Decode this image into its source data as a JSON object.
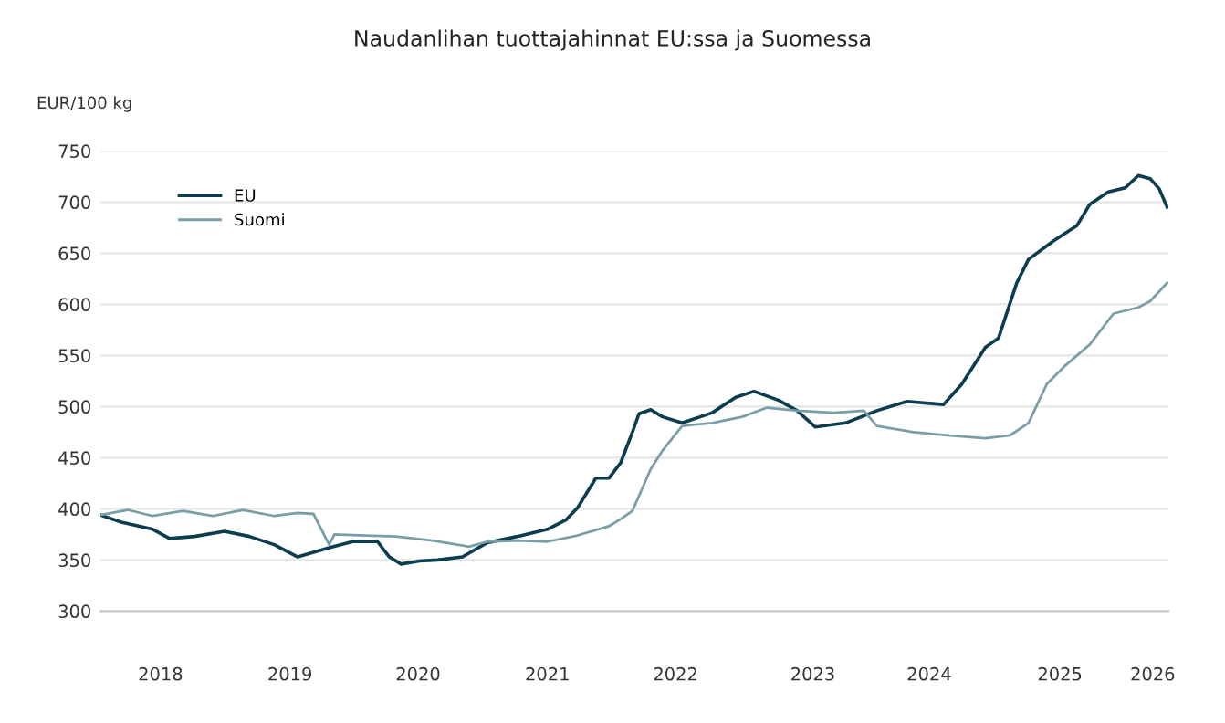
{
  "chart_data": {
    "type": "line",
    "title": "Naudanlihan tuottajahinnat EU:ssa ja Suomessa",
    "ylabel": "EUR/100 kg",
    "ylim": [
      300,
      750
    ],
    "yticks": [
      300,
      350,
      400,
      450,
      500,
      550,
      600,
      650,
      700,
      750
    ],
    "xlim": [
      2018.0,
      2026.17
    ],
    "xticks": [
      {
        "value": 2018.46,
        "label": "2018"
      },
      {
        "value": 2019.45,
        "label": "2019"
      },
      {
        "value": 2020.43,
        "label": "2020"
      },
      {
        "value": 2021.42,
        "label": "2021"
      },
      {
        "value": 2022.4,
        "label": "2022"
      },
      {
        "value": 2023.45,
        "label": "2023"
      },
      {
        "value": 2024.34,
        "label": "2024"
      },
      {
        "value": 2025.34,
        "label": "2025"
      },
      {
        "value": 2026.05,
        "label": "2026"
      }
    ],
    "grid": "y",
    "legend": "top left",
    "series": [
      {
        "name": "EU",
        "color": "#0b3d4f",
        "x": [
          2018.0,
          2018.16,
          2018.4,
          2018.53,
          2018.72,
          2018.95,
          2019.14,
          2019.33,
          2019.51,
          2019.75,
          2019.93,
          2020.12,
          2020.21,
          2020.3,
          2020.44,
          2020.58,
          2020.77,
          2020.96,
          2021.19,
          2021.42,
          2021.56,
          2021.65,
          2021.79,
          2021.89,
          2021.98,
          2022.07,
          2022.12,
          2022.21,
          2022.3,
          2022.45,
          2022.68,
          2022.86,
          2023.0,
          2023.19,
          2023.33,
          2023.47,
          2023.7,
          2023.94,
          2024.17,
          2024.45,
          2024.59,
          2024.77,
          2024.87,
          2025.01,
          2025.1,
          2025.29,
          2025.47,
          2025.57,
          2025.71,
          2025.84,
          2025.94,
          2026.03,
          2026.1,
          2026.16
        ],
        "values": [
          394,
          387,
          380,
          371,
          373,
          378,
          373,
          365,
          353,
          362,
          368,
          368,
          353,
          346,
          349,
          350,
          353,
          367,
          373,
          380,
          389,
          401,
          430,
          430,
          445,
          475,
          493,
          497,
          490,
          484,
          494,
          509,
          515,
          506,
          496,
          480,
          484,
          496,
          505,
          502,
          522,
          558,
          567,
          621,
          644,
          662,
          677,
          698,
          710,
          714,
          726,
          723,
          713,
          695
        ]
      },
      {
        "name": "Suomi",
        "color": "#7a9ea8",
        "x": [
          2018.0,
          2018.21,
          2018.4,
          2018.63,
          2018.86,
          2019.09,
          2019.33,
          2019.51,
          2019.63,
          2019.75,
          2019.79,
          2020.03,
          2020.26,
          2020.54,
          2020.82,
          2020.96,
          2021.19,
          2021.42,
          2021.65,
          2021.89,
          2021.98,
          2022.07,
          2022.21,
          2022.3,
          2022.45,
          2022.68,
          2022.91,
          2023.1,
          2023.33,
          2023.61,
          2023.84,
          2023.94,
          2024.22,
          2024.48,
          2024.77,
          2024.96,
          2025.1,
          2025.24,
          2025.38,
          2025.57,
          2025.75,
          2025.94,
          2026.03,
          2026.16
        ],
        "values": [
          394,
          399,
          393,
          398,
          393,
          399,
          393,
          396,
          395,
          365,
          375,
          374,
          373,
          369,
          363,
          368,
          369,
          368,
          374,
          383,
          390,
          398,
          439,
          457,
          481,
          484,
          490,
          499,
          496,
          494,
          496,
          481,
          475,
          472,
          469,
          472,
          484,
          522,
          540,
          561,
          591,
          597,
          603,
          621
        ]
      }
    ]
  }
}
